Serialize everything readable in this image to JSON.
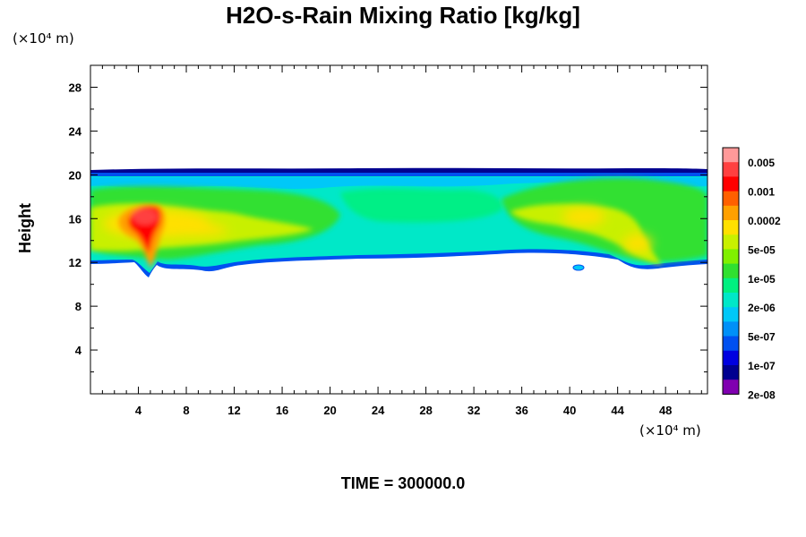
{
  "chart_data": {
    "type": "heatmap",
    "title": "H2O-s-Rain Mixing Ratio [kg/kg]",
    "ylabel": "Height",
    "x_unit_label": "(×10⁴ m)",
    "y_unit_label": "(×10⁴ m)",
    "time_label": "TIME = 300000.0",
    "xlim": [
      0,
      51.5
    ],
    "ylim": [
      0,
      30
    ],
    "x_ticks": [
      4,
      8,
      12,
      16,
      20,
      24,
      28,
      32,
      36,
      40,
      44,
      48
    ],
    "y_ticks": [
      4,
      8,
      12,
      16,
      20,
      24,
      28
    ],
    "colorbar": {
      "labels": [
        "0.005",
        "0.001",
        "0.0002",
        "5e-05",
        "1e-05",
        "2e-06",
        "5e-07",
        "1e-07",
        "2e-08"
      ],
      "colors": [
        "#ff9999",
        "#ff4040",
        "#ff0000",
        "#ff6000",
        "#ffa000",
        "#ffe000",
        "#c8f000",
        "#80f000",
        "#30e030",
        "#00f080",
        "#00e8c8",
        "#00c8f8",
        "#0090f8",
        "#0050f0",
        "#0000e0",
        "#000090",
        "#8000b0"
      ]
    },
    "field_description_levels": {
      "layer_bottom_height": 12,
      "layer_top_height": 20.2,
      "max_region_x": 5,
      "max_region_height": 16
    }
  }
}
